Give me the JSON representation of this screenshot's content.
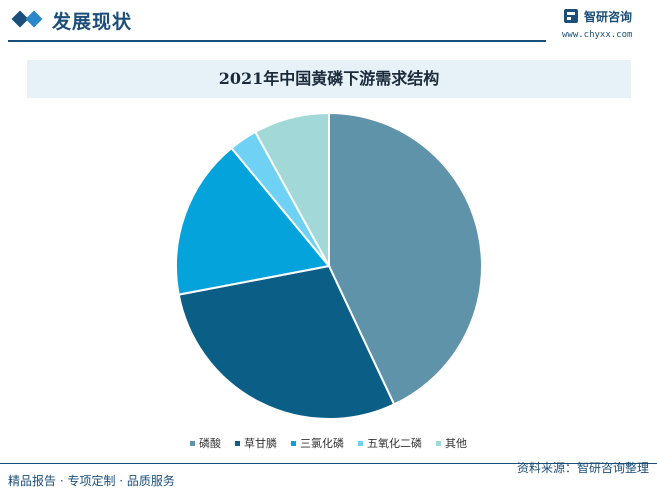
{
  "header": {
    "title": "发展现状",
    "brand_name": "智研咨询",
    "brand_url": "www.chyxx.com",
    "logo_icon": "chyxx-logo-icon"
  },
  "footer": {
    "left_text": "精品报告 · 专项定制 · 品质服务",
    "source_text": "资料来源：智研咨询整理"
  },
  "colors": {
    "brand": "#1b4f7a",
    "title_band": "#e6f1f8"
  },
  "chart_data": {
    "type": "pie",
    "title": "2021年中国黄磷下游需求结构",
    "legend_position": "bottom",
    "slices": [
      {
        "name": "磷酸",
        "value": 43,
        "color": "#5e93aa"
      },
      {
        "name": "草甘膦",
        "value": 29,
        "color": "#0b5e86"
      },
      {
        "name": "三氯化磷",
        "value": 17,
        "color": "#04a3dc"
      },
      {
        "name": "五氧化二磷",
        "value": 3,
        "color": "#6fd2f5"
      },
      {
        "name": "其他",
        "value": 8,
        "color": "#a2d8d8"
      }
    ]
  }
}
